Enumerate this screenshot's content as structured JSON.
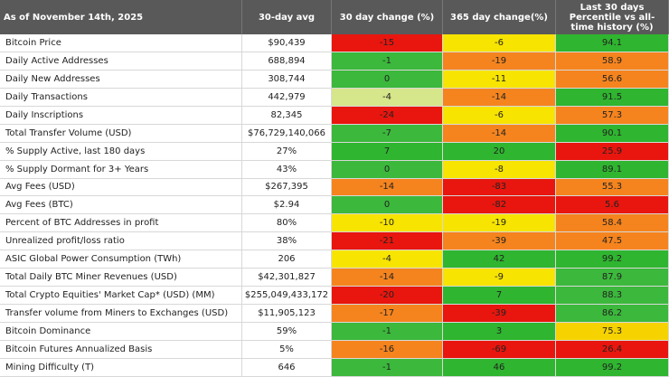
{
  "header": [
    "As of November 14th, 2025",
    "30-day avg",
    "30 day change (%)",
    "365 day change(%)",
    "Last 30 days Percentile vs all-time history (%)"
  ],
  "rows": [
    {
      "cells": [
        "Bitcoin Price",
        "$90,439",
        -15,
        -6,
        94.1
      ],
      "colors": [
        "#e8160e",
        "#f7e400",
        "#2fb52f"
      ]
    },
    {
      "cells": [
        "Daily Active Addresses",
        "688,894",
        -1,
        -19,
        58.9
      ],
      "colors": [
        "#3cb83c",
        "#f5841e",
        "#f5841e"
      ]
    },
    {
      "cells": [
        "Daily New Addresses",
        "308,744",
        0,
        -11,
        56.6
      ],
      "colors": [
        "#3cb83c",
        "#f7e400",
        "#f5841e"
      ]
    },
    {
      "cells": [
        "Daily Transactions",
        "442,979",
        -4,
        -14,
        91.5
      ],
      "colors": [
        "#d6e68a",
        "#f5841e",
        "#2fb52f"
      ]
    },
    {
      "cells": [
        "Daily Inscriptions",
        "82,345",
        -24,
        -6,
        57.3
      ],
      "colors": [
        "#e8160e",
        "#f7e400",
        "#f5841e"
      ]
    },
    {
      "cells": [
        "Total Transfer Volume (USD)",
        "$76,729,140,066",
        -7,
        -14,
        90.1
      ],
      "colors": [
        "#3cb83c",
        "#f5841e",
        "#2fb52f"
      ]
    },
    {
      "cells": [
        "% Supply Active, last 180 days",
        "27%",
        7,
        20,
        25.9
      ],
      "colors": [
        "#2fb52f",
        "#2fb52f",
        "#e8160e"
      ]
    },
    {
      "cells": [
        "% Supply Dormant for 3+ Years",
        "43%",
        0,
        -8,
        89.1
      ],
      "colors": [
        "#3cb83c",
        "#f7e400",
        "#2fb52f"
      ]
    },
    {
      "cells": [
        "Avg Fees (USD)",
        "$267,395",
        -14,
        -83,
        55.3
      ],
      "colors": [
        "#f5841e",
        "#e8160e",
        "#f5841e"
      ]
    },
    {
      "cells": [
        "Avg Fees (BTC)",
        "$2.94",
        0,
        -82,
        5.6
      ],
      "colors": [
        "#3cb83c",
        "#e8160e",
        "#e8160e"
      ]
    },
    {
      "cells": [
        "Percent of BTC Addresses in profit",
        "80%",
        -10,
        -19,
        58.4
      ],
      "colors": [
        "#f7e400",
        "#f7e400",
        "#f5841e"
      ]
    },
    {
      "cells": [
        "Unrealized profit/loss ratio",
        "38%",
        -21,
        -39,
        47.5
      ],
      "colors": [
        "#e8160e",
        "#f5841e",
        "#f5841e"
      ]
    },
    {
      "cells": [
        "ASIC Global Power Consumption (TWh)",
        "206",
        -4,
        42,
        99.2
      ],
      "colors": [
        "#f7e400",
        "#2fb52f",
        "#2fb52f"
      ]
    },
    {
      "cells": [
        "Total Daily BTC Miner Revenues (USD)",
        "$42,301,827",
        -14,
        -9,
        87.9
      ],
      "colors": [
        "#f5841e",
        "#f7e400",
        "#3cb83c"
      ]
    },
    {
      "cells": [
        "Total Crypto Equities' Market Cap* (USD) (MM)",
        "$255,049,433,172",
        -20,
        7,
        88.3
      ],
      "colors": [
        "#e8160e",
        "#2fb52f",
        "#3cb83c"
      ]
    },
    {
      "cells": [
        "Transfer volume from Miners to Exchanges (USD)",
        "$11,905,123",
        -17,
        -39,
        86.2
      ],
      "colors": [
        "#f5841e",
        "#e8160e",
        "#3cb83c"
      ]
    },
    {
      "cells": [
        "Bitcoin Dominance",
        "59%",
        -1,
        3,
        75.3
      ],
      "colors": [
        "#3cb83c",
        "#2fb52f",
        "#f5d200"
      ]
    },
    {
      "cells": [
        "Bitcoin Futures Annualized Basis",
        "5%",
        -16,
        -69,
        26.4
      ],
      "colors": [
        "#f5841e",
        "#e8160e",
        "#e8160e"
      ]
    },
    {
      "cells": [
        "Mining Difficulty (T)",
        "646",
        -1,
        46,
        99.2
      ],
      "colors": [
        "#3cb83c",
        "#2fb52f",
        "#2fb52f"
      ]
    }
  ]
}
